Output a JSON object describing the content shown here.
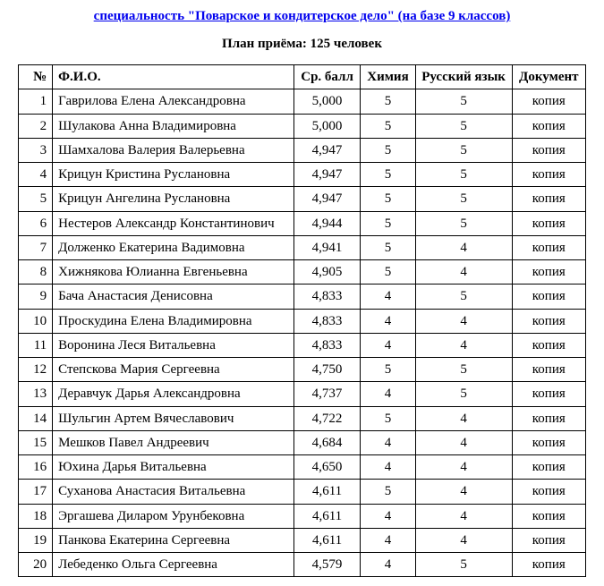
{
  "title": "специальность \"Поварское и кондитерское дело\" (на базе 9 классов)",
  "subtitle": "План приёма: 125 человек",
  "table": {
    "columns": {
      "num": "№",
      "fio": "Ф.И.О.",
      "avg": "Ср. балл",
      "chem": "Химия",
      "rus": "Русский язык",
      "doc": "Документ"
    },
    "rows": [
      {
        "num": 1,
        "fio": "Гаврилова Елена Александровна",
        "avg": "5,000",
        "chem": "5",
        "rus": "5",
        "doc": "копия"
      },
      {
        "num": 2,
        "fio": "Шулакова Анна Владимировна",
        "avg": "5,000",
        "chem": "5",
        "rus": "5",
        "doc": "копия"
      },
      {
        "num": 3,
        "fio": "Шамхалова Валерия Валерьевна",
        "avg": "4,947",
        "chem": "5",
        "rus": "5",
        "doc": "копия"
      },
      {
        "num": 4,
        "fio": "Крицун Кристина Руслановна",
        "avg": "4,947",
        "chem": "5",
        "rus": "5",
        "doc": "копия"
      },
      {
        "num": 5,
        "fio": "Крицун Ангелина Руслановна",
        "avg": "4,947",
        "chem": "5",
        "rus": "5",
        "doc": "копия"
      },
      {
        "num": 6,
        "fio": "Нестеров Александр Константинович",
        "avg": "4,944",
        "chem": "5",
        "rus": "5",
        "doc": "копия"
      },
      {
        "num": 7,
        "fio": "Долженко Екатерина Вадимовна",
        "avg": "4,941",
        "chem": "5",
        "rus": "4",
        "doc": "копия"
      },
      {
        "num": 8,
        "fio": "Хижнякова Юлианна Евгеньевна",
        "avg": "4,905",
        "chem": "5",
        "rus": "4",
        "doc": "копия"
      },
      {
        "num": 9,
        "fio": "Бача Анастасия Денисовна",
        "avg": "4,833",
        "chem": "4",
        "rus": "5",
        "doc": "копия"
      },
      {
        "num": 10,
        "fio": "Проскудина Елена Владимировна",
        "avg": "4,833",
        "chem": "4",
        "rus": "4",
        "doc": "копия"
      },
      {
        "num": 11,
        "fio": "Воронина Леся Витальевна",
        "avg": "4,833",
        "chem": "4",
        "rus": "4",
        "doc": "копия"
      },
      {
        "num": 12,
        "fio": "Степскова Мария Сергеевна",
        "avg": "4,750",
        "chem": "5",
        "rus": "5",
        "doc": "копия"
      },
      {
        "num": 13,
        "fio": "Деравчук Дарья Александровна",
        "avg": "4,737",
        "chem": "4",
        "rus": "5",
        "doc": "копия"
      },
      {
        "num": 14,
        "fio": "Шульгин Артем Вячеславович",
        "avg": "4,722",
        "chem": "5",
        "rus": "4",
        "doc": "копия"
      },
      {
        "num": 15,
        "fio": "Мешков Павел Андреевич",
        "avg": "4,684",
        "chem": "4",
        "rus": "4",
        "doc": "копия"
      },
      {
        "num": 16,
        "fio": "Юхина Дарья Витальевна",
        "avg": "4,650",
        "chem": "4",
        "rus": "4",
        "doc": "копия"
      },
      {
        "num": 17,
        "fio": "Суханова Анастасия Витальевна",
        "avg": "4,611",
        "chem": "5",
        "rus": "4",
        "doc": "копия"
      },
      {
        "num": 18,
        "fio": "Эргашева Диларом Урунбековна",
        "avg": "4,611",
        "chem": "4",
        "rus": "4",
        "doc": "копия"
      },
      {
        "num": 19,
        "fio": "Панкова Екатерина Сергеевна",
        "avg": "4,611",
        "chem": "4",
        "rus": "4",
        "doc": "копия"
      },
      {
        "num": 20,
        "fio": "Лебеденко Ольга Сергеевна",
        "avg": "4,579",
        "chem": "4",
        "rus": "5",
        "doc": "копия"
      }
    ]
  }
}
